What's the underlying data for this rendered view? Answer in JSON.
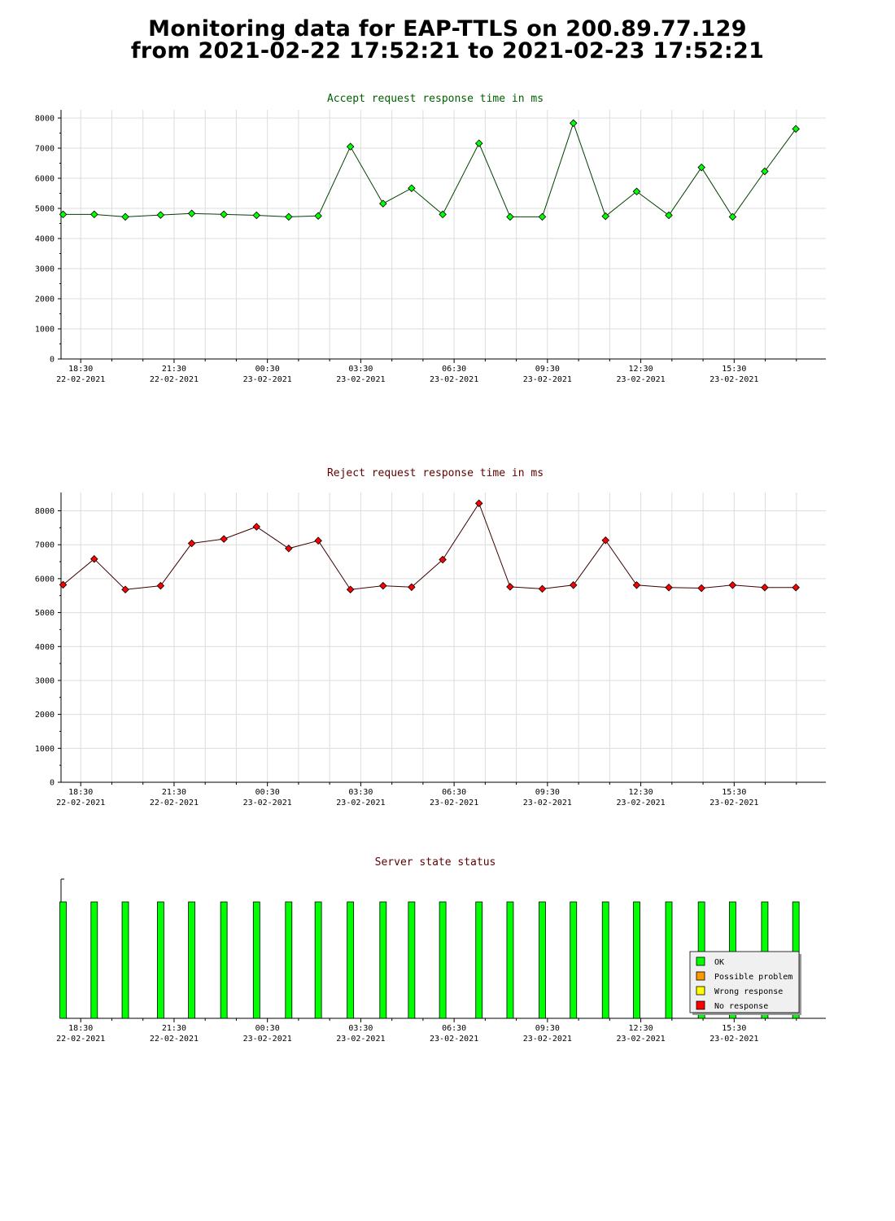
{
  "title": {
    "line1": "Monitoring data for EAP-TTLS on 200.89.77.129",
    "line2": "from 2021-02-22 17:52:21 to 2021-02-23 17:52:21"
  },
  "x_ticks": [
    {
      "time": "18:30",
      "date": "22-02-2021"
    },
    {
      "time": "21:30",
      "date": "22-02-2021"
    },
    {
      "time": "00:30",
      "date": "23-02-2021"
    },
    {
      "time": "03:30",
      "date": "23-02-2021"
    },
    {
      "time": "06:30",
      "date": "23-02-2021"
    },
    {
      "time": "09:30",
      "date": "23-02-2021"
    },
    {
      "time": "12:30",
      "date": "23-02-2021"
    },
    {
      "time": "15:30",
      "date": "23-02-2021"
    }
  ],
  "colors": {
    "accept_line": "#004000",
    "accept_marker": "#00ff00",
    "reject_line": "#400000",
    "reject_marker": "#ff0000",
    "accept_title": "#006000",
    "reject_title": "#600000",
    "state_title": "#600000",
    "ok": "#00ff00",
    "possible_problem": "#ff9900",
    "wrong_response": "#ffff00",
    "no_response": "#ff0000"
  },
  "chart_data": [
    {
      "type": "line",
      "title": "Accept request response time in ms",
      "x": [
        "2021-02-22 17:56",
        "2021-02-22 18:56",
        "2021-02-22 19:56",
        "2021-02-22 21:04",
        "2021-02-22 22:04",
        "2021-02-22 23:06",
        "2021-02-23 00:09",
        "2021-02-23 01:11",
        "2021-02-23 02:08",
        "2021-02-23 03:10",
        "2021-02-23 04:13",
        "2021-02-23 05:08",
        "2021-02-23 06:08",
        "2021-02-23 07:18",
        "2021-02-23 08:18",
        "2021-02-23 09:20",
        "2021-02-23 10:20",
        "2021-02-23 11:22",
        "2021-02-23 12:22",
        "2021-02-23 13:24",
        "2021-02-23 14:27",
        "2021-02-23 15:27",
        "2021-02-23 16:29",
        "2021-02-23 17:29"
      ],
      "y": [
        4800,
        4800,
        4720,
        4780,
        4830,
        4800,
        4770,
        4720,
        4750,
        7050,
        5160,
        5670,
        4800,
        7160,
        4720,
        4720,
        7830,
        4740,
        5560,
        4770,
        6360,
        4720,
        6230,
        7640
      ],
      "ylim": [
        0,
        8000
      ],
      "yticks": [
        "0",
        "1000",
        "2000",
        "3000",
        "4000",
        "5000",
        "6000",
        "7000",
        "8000"
      ],
      "grid": true
    },
    {
      "type": "line",
      "title": "Reject request response time in ms",
      "x": [
        "2021-02-22 17:56",
        "2021-02-22 18:56",
        "2021-02-22 19:56",
        "2021-02-22 21:04",
        "2021-02-22 22:04",
        "2021-02-22 23:06",
        "2021-02-23 00:09",
        "2021-02-23 01:11",
        "2021-02-23 02:08",
        "2021-02-23 03:10",
        "2021-02-23 04:13",
        "2021-02-23 05:08",
        "2021-02-23 06:08",
        "2021-02-23 07:18",
        "2021-02-23 08:18",
        "2021-02-23 09:20",
        "2021-02-23 10:20",
        "2021-02-23 11:22",
        "2021-02-23 12:22",
        "2021-02-23 13:24",
        "2021-02-23 14:27",
        "2021-02-23 15:27",
        "2021-02-23 16:29",
        "2021-02-23 17:29"
      ],
      "y": [
        5820,
        6580,
        5680,
        5790,
        7040,
        7170,
        7530,
        6890,
        7120,
        5680,
        5790,
        5750,
        6560,
        8220,
        5760,
        5700,
        5810,
        7130,
        5810,
        5740,
        5720,
        5810,
        5740,
        5740
      ],
      "ylim": [
        0,
        8300
      ],
      "yticks": [
        "0",
        "1000",
        "2000",
        "3000",
        "4000",
        "5000",
        "6000",
        "7000",
        "8000"
      ],
      "grid": true
    },
    {
      "type": "bar",
      "title": "Server state status",
      "x": [
        "2021-02-22 17:56",
        "2021-02-22 18:56",
        "2021-02-22 19:56",
        "2021-02-22 21:04",
        "2021-02-22 22:04",
        "2021-02-22 23:06",
        "2021-02-23 00:09",
        "2021-02-23 01:11",
        "2021-02-23 02:08",
        "2021-02-23 03:10",
        "2021-02-23 04:13",
        "2021-02-23 05:08",
        "2021-02-23 06:08",
        "2021-02-23 07:18",
        "2021-02-23 08:18",
        "2021-02-23 09:20",
        "2021-02-23 10:20",
        "2021-02-23 11:22",
        "2021-02-23 12:22",
        "2021-02-23 13:24",
        "2021-02-23 14:27",
        "2021-02-23 15:27",
        "2021-02-23 16:29",
        "2021-02-23 17:29"
      ],
      "state": [
        "OK",
        "OK",
        "OK",
        "OK",
        "OK",
        "OK",
        "OK",
        "OK",
        "OK",
        "OK",
        "OK",
        "OK",
        "OK",
        "OK",
        "OK",
        "OK",
        "OK",
        "OK",
        "OK",
        "OK",
        "OK",
        "OK",
        "OK",
        "OK"
      ],
      "legend": [
        "OK",
        "Possible problem",
        "Wrong response",
        "No response"
      ],
      "legend_position": "bottom-right",
      "grid": false
    }
  ]
}
